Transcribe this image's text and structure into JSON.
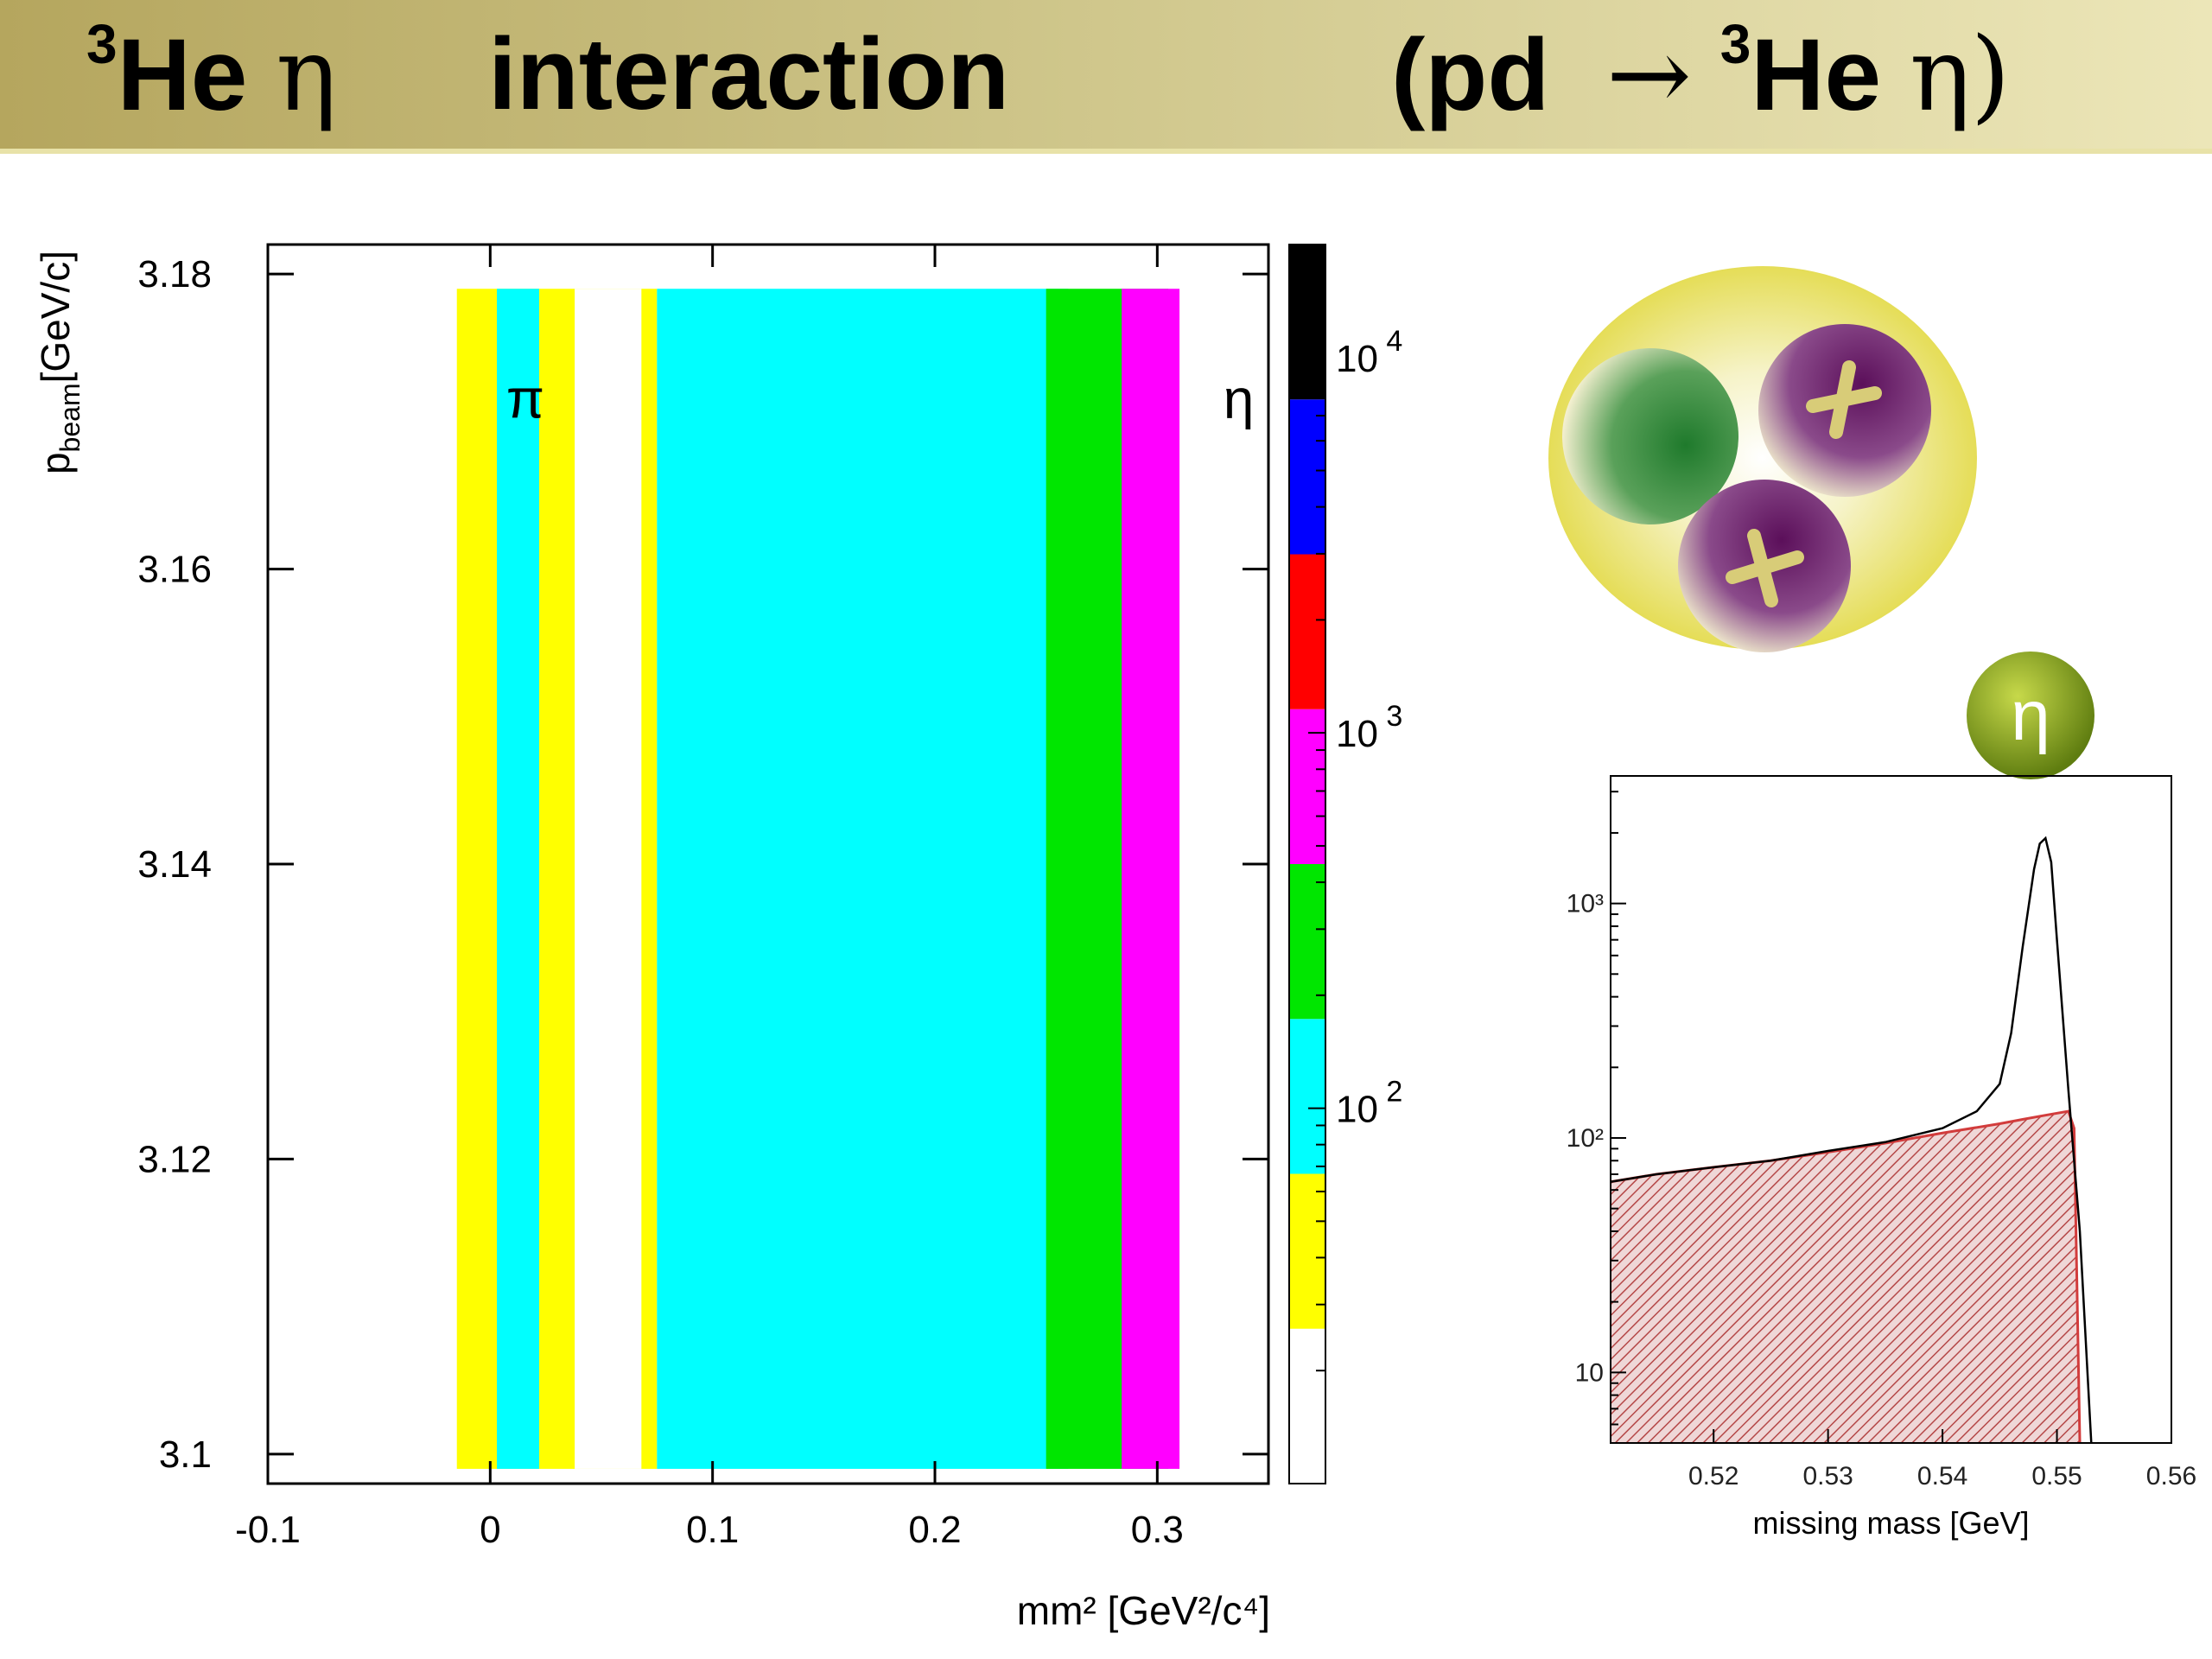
{
  "title": {
    "left_sup": "3",
    "left_main": "He",
    "left_greek": "η",
    "middle": "interaction",
    "right_open": "(pd",
    "right_arrow": "→",
    "right_sup": "3",
    "right_main": "He",
    "right_greek": "η)"
  },
  "colors": {
    "banner": "#cdc488",
    "white": "#ffffff",
    "yellow": "#ffff00",
    "cyan": "#00ffff",
    "green": "#00e600",
    "magenta": "#ff00ff",
    "red": "#ff0000",
    "blue": "#0000ff",
    "black": "#000000",
    "hist_total": "#000000",
    "hist_bg": "#d23c3c"
  },
  "nucleus_icon": {
    "label": "η"
  },
  "chart_data": [
    {
      "type": "heatmap",
      "xlabel": "mm² [GeV²/c⁴]",
      "ylabel_main": "p",
      "ylabel_sub": "beam",
      "ylabel_tail": "[GeV/c]",
      "xlim": [
        -0.1,
        0.35
      ],
      "ylim": [
        3.098,
        3.182
      ],
      "x_ticks": [
        -0.1,
        0,
        0.1,
        0.2,
        0.3
      ],
      "x_tick_labels": [
        "-0.1",
        "0",
        "0.1",
        "0.2",
        "0.3"
      ],
      "y_ticks": [
        3.1,
        3.12,
        3.14,
        3.16,
        3.18
      ],
      "y_tick_labels": [
        "3.1",
        "3.12",
        "3.14",
        "3.16",
        "3.18"
      ],
      "annotations": [
        {
          "text": "π",
          "x": 0.015,
          "y": 3.172
        },
        {
          "text": "η",
          "x": 0.32,
          "y": 3.172
        }
      ],
      "colorbar": {
        "scale": "log",
        "range": [
          10,
          20000
        ],
        "tick_values": [
          100,
          1000,
          10000
        ],
        "tick_labels": [
          "10 2",
          "10 3",
          "10 4"
        ],
        "levels": [
          "white",
          "yellow",
          "cyan",
          "green",
          "magenta",
          "red",
          "blue",
          "black"
        ]
      },
      "bands": [
        {
          "level": "yellow",
          "x_start": -0.015,
          "x_end": 0.075,
          "y_start": 3.099,
          "y_end": 3.179
        },
        {
          "level": "white",
          "x_start": 0.038,
          "x_end": 0.068,
          "y_start": 3.099,
          "y_end": 3.179
        },
        {
          "level": "cyan",
          "x_start": 0.003,
          "x_end": 0.022,
          "y_start": 3.099,
          "y_end": 3.179
        },
        {
          "level": "cyan",
          "x_start": 0.075,
          "x_end": 0.26,
          "y_start": 3.099,
          "y_end": 3.179
        },
        {
          "level": "green",
          "x_start": 0.25,
          "x_end": 0.305,
          "y_start": 3.099,
          "y_end": 3.179
        },
        {
          "level": "magenta",
          "x_start": 0.284,
          "x_end": 0.31,
          "y_start": 3.099,
          "y_end": 3.179
        }
      ]
    },
    {
      "type": "line",
      "xlabel": "missing mass [GeV]",
      "ylabel": "",
      "yscale": "log",
      "xlim": [
        0.511,
        0.56
      ],
      "ylim": [
        5,
        3500
      ],
      "x_ticks": [
        0.52,
        0.53,
        0.54,
        0.55,
        0.56
      ],
      "x_tick_labels": [
        "0.52",
        "0.53",
        "0.54",
        "0.55",
        "0.56"
      ],
      "y_ticks": [
        10,
        100,
        1000
      ],
      "y_tick_labels": [
        "10",
        "10²",
        "10³"
      ],
      "series": [
        {
          "x": [
            0.511,
            0.515,
            0.52,
            0.525,
            0.53,
            0.535,
            0.54,
            0.543,
            0.545,
            0.546,
            0.547,
            0.548,
            0.5485,
            0.549,
            0.5495,
            0.55,
            0.551,
            0.552,
            0.553
          ],
          "values": [
            65,
            70,
            75,
            80,
            88,
            96,
            110,
            130,
            170,
            280,
            650,
            1400,
            1800,
            1900,
            1500,
            700,
            160,
            40,
            5
          ]
        },
        {
          "x": [
            0.511,
            0.515,
            0.52,
            0.525,
            0.53,
            0.535,
            0.54,
            0.545,
            0.547,
            0.549,
            0.551,
            0.5515,
            0.552
          ],
          "values": [
            65,
            70,
            75,
            80,
            87,
            95,
            105,
            115,
            120,
            125,
            130,
            110,
            5
          ]
        }
      ]
    }
  ]
}
